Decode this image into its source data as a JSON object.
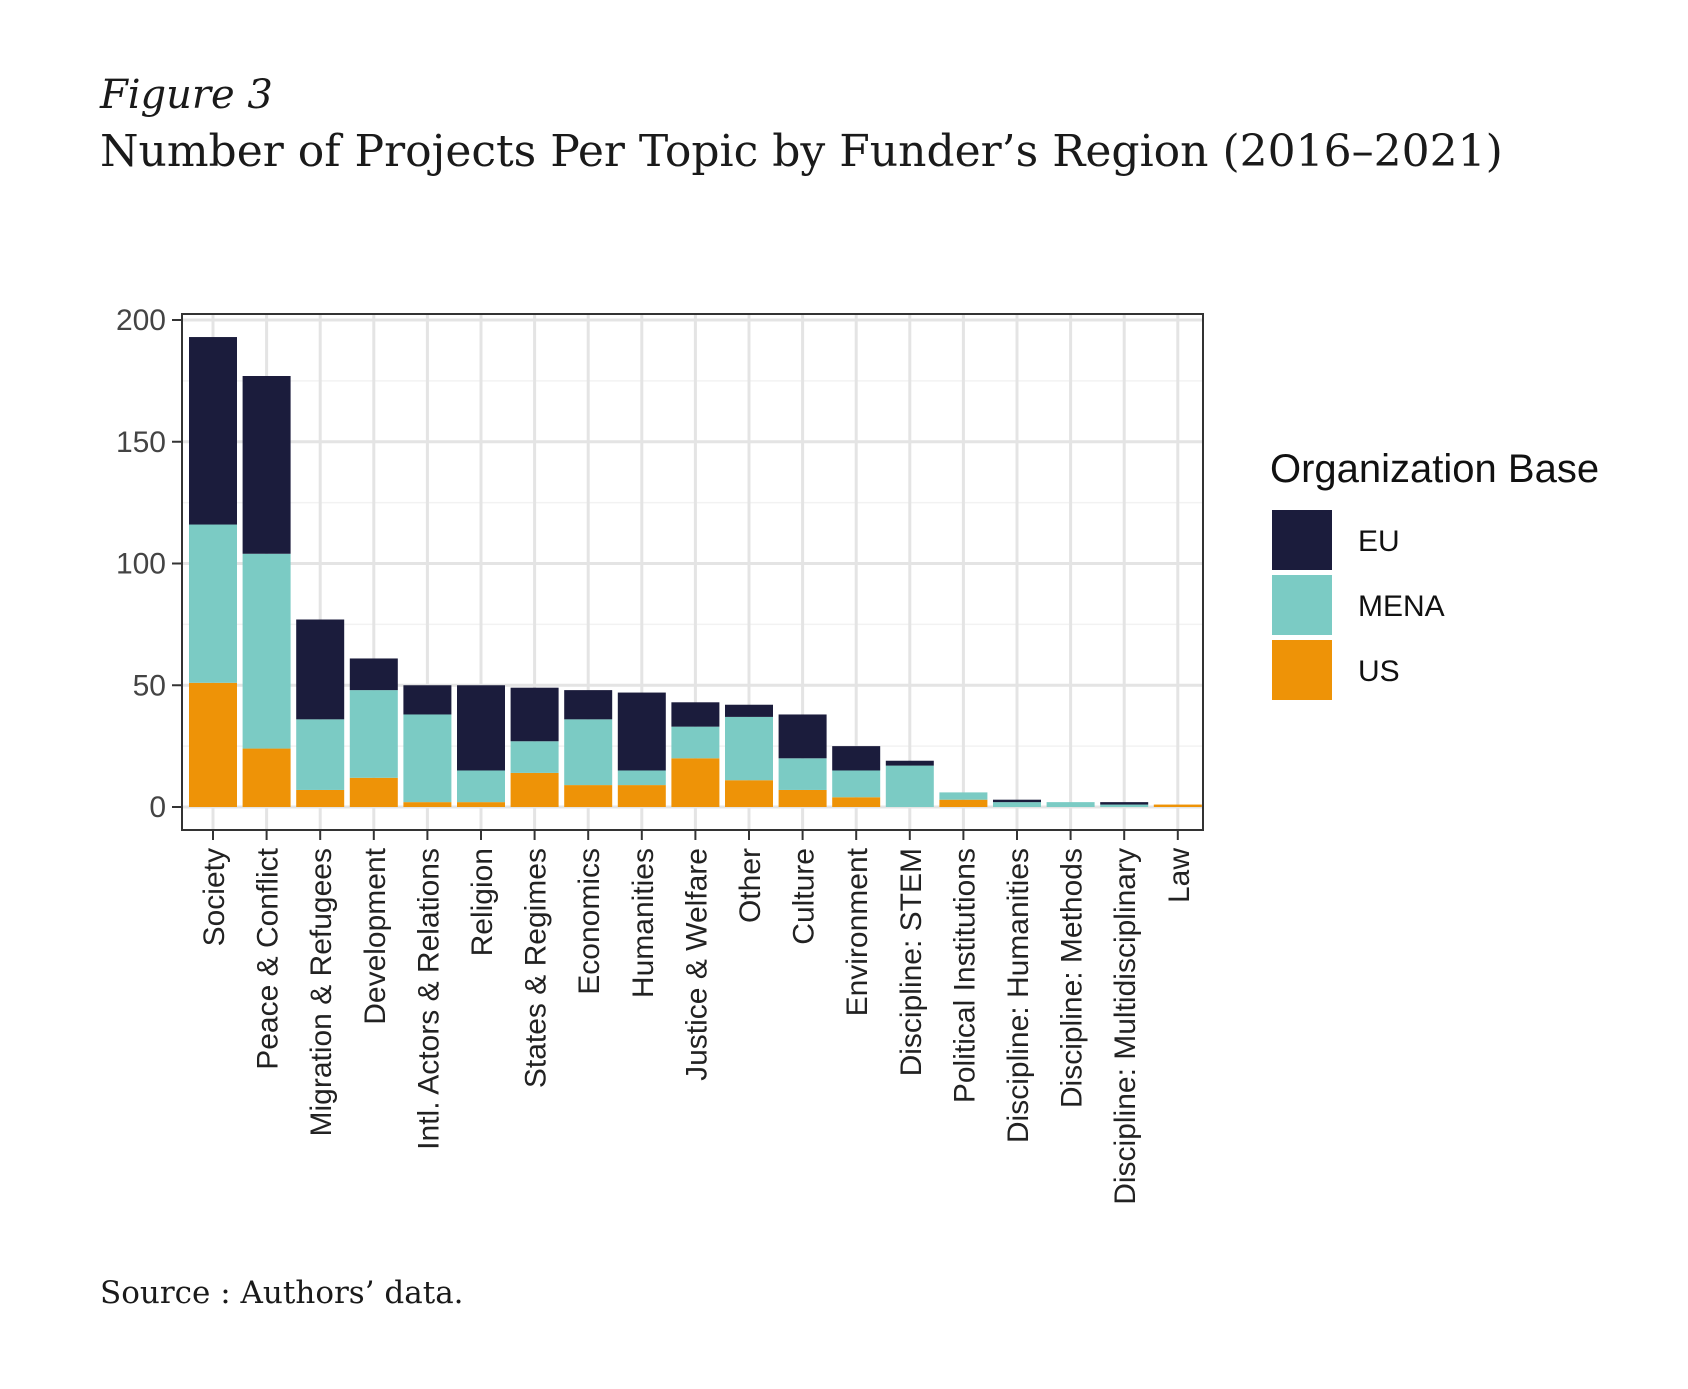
{
  "figure": {
    "label": "Figure 3",
    "title": "Number of Projects Per Topic by Funder’s Region (2016–2021)",
    "source": "Source : Authors’ data."
  },
  "chart_data": {
    "type": "bar",
    "stacked": true,
    "title": "Number of Projects Per Topic by Funder’s Region (2016–2021)",
    "xlabel": "",
    "ylabel": "",
    "ylim": [
      0,
      200
    ],
    "yticks": [
      0,
      50,
      100,
      150,
      200
    ],
    "grid": true,
    "legend_position": "right",
    "legend_title": "Organization Base",
    "categories": [
      "Society",
      "Peace & Conflict",
      "Migration & Refugees",
      "Development",
      "Intl. Actors & Relations",
      "Religion",
      "States & Regimes",
      "Economics",
      "Humanities",
      "Justice & Welfare",
      "Other",
      "Culture",
      "Environment",
      "Discipline: STEM",
      "Political Institutions",
      "Discipline: Humanities",
      "Discipline: Methods",
      "Discipline: Multidisciplinary",
      "Law"
    ],
    "series": [
      {
        "name": "US",
        "color": "#EE9307",
        "values": [
          51,
          24,
          7,
          12,
          2,
          2,
          14,
          9,
          9,
          20,
          11,
          7,
          4,
          0,
          3,
          0,
          0,
          0,
          1
        ]
      },
      {
        "name": "MENA",
        "color": "#7BCBC4",
        "values": [
          65,
          80,
          29,
          36,
          36,
          13,
          13,
          27,
          6,
          13,
          26,
          13,
          11,
          17,
          3,
          2,
          2,
          1,
          0
        ]
      },
      {
        "name": "EU",
        "color": "#1B1C3C",
        "values": [
          77,
          73,
          41,
          13,
          12,
          35,
          22,
          12,
          32,
          10,
          5,
          18,
          10,
          2,
          0,
          1,
          0,
          1,
          0
        ]
      }
    ],
    "legend_order": [
      "EU",
      "MENA",
      "US"
    ]
  }
}
